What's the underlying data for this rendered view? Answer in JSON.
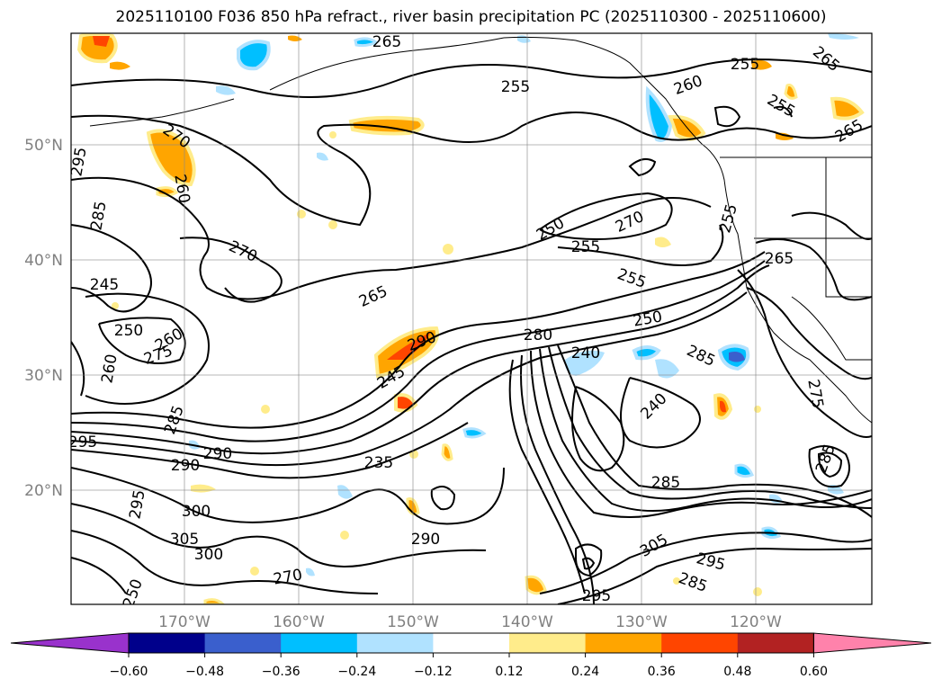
{
  "title": "2025110100 F036 850 hPa refract., river basin precipitation PC (2025110300 - 2025110600)",
  "map": {
    "lat_labels": [
      "50°N",
      "40°N",
      "30°N",
      "20°N"
    ],
    "lon_labels": [
      "170°W",
      "160°W",
      "150°W",
      "140°W",
      "130°W",
      "120°W"
    ],
    "contour_labels": [
      "265",
      "255",
      "255",
      "265",
      "260",
      "255",
      "265",
      "270",
      "260",
      "250",
      "255",
      "270",
      "255",
      "255",
      "265",
      "270",
      "265",
      "245",
      "250",
      "260",
      "275",
      "290",
      "280",
      "250",
      "240",
      "285",
      "245",
      "240",
      "275",
      "285",
      "290",
      "295",
      "290",
      "235",
      "285",
      "285",
      "295",
      "300",
      "305",
      "300",
      "290",
      "305",
      "295",
      "285",
      "295",
      "270",
      "250",
      "260",
      "285",
      "295"
    ]
  },
  "colorbar": {
    "tick_labels": [
      "−0.60",
      "−0.48",
      "−0.36",
      "−0.24",
      "−0.12",
      "0.12",
      "0.24",
      "0.36",
      "0.48",
      "0.60"
    ],
    "colors": [
      "#9932cc",
      "#00008b",
      "#3a5fcd",
      "#00bfff",
      "#b0e2ff",
      "#ffffff",
      "#ffec8b",
      "#ffa500",
      "#ff4500",
      "#b22222",
      "#ff82ab"
    ]
  }
}
